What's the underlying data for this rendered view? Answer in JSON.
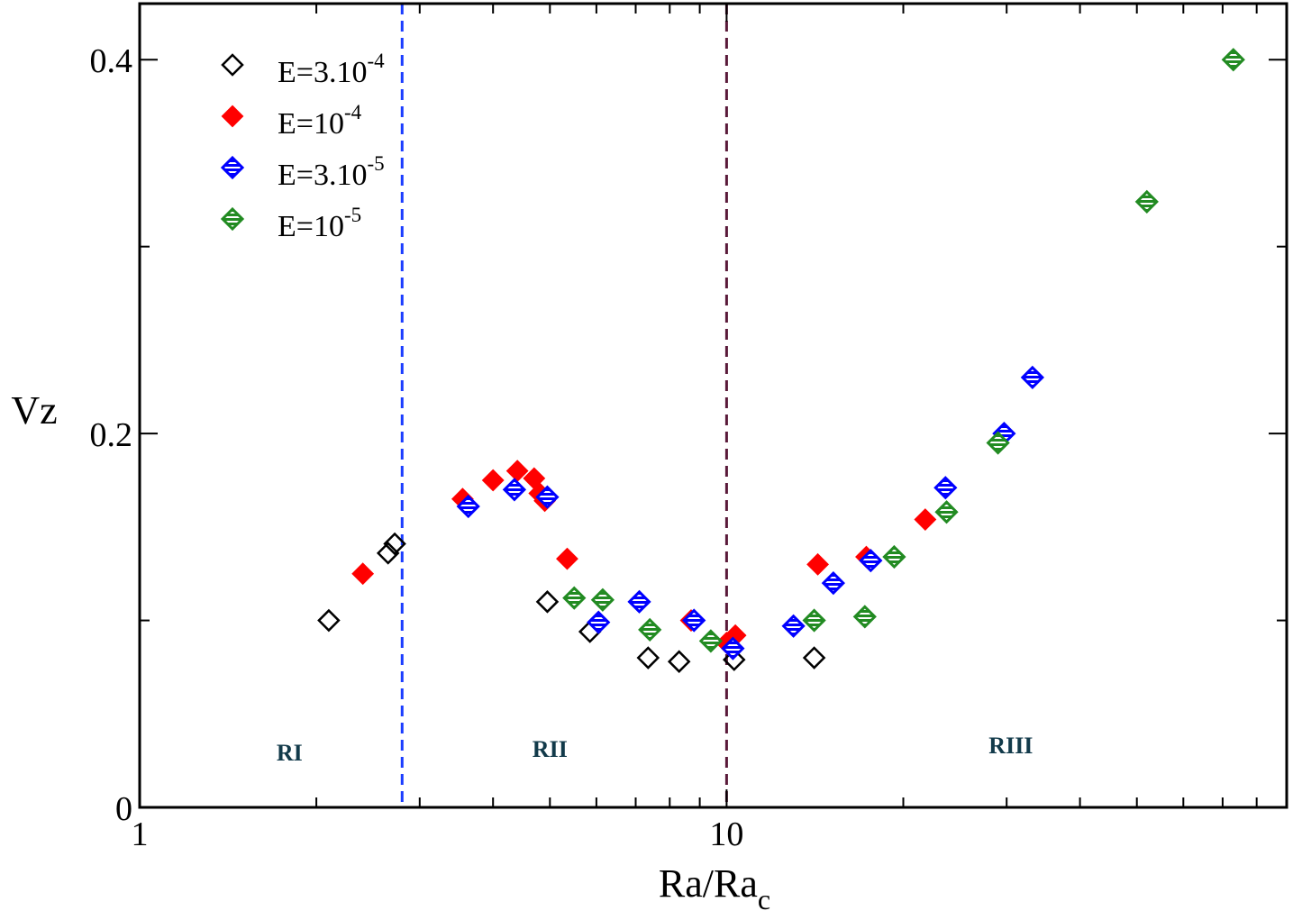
{
  "chart_data": {
    "type": "scatter",
    "x_scale": "log",
    "xlim": [
      1,
      90
    ],
    "ylim": [
      0,
      0.43
    ],
    "xlabel": {
      "main": "Ra/Ra",
      "sub": "c"
    },
    "ylabel": "Vz",
    "x_ticks": [
      {
        "value": 1,
        "label": "1"
      },
      {
        "value": 10,
        "label": "10"
      }
    ],
    "y_ticks": [
      {
        "value": 0,
        "label": "0"
      },
      {
        "value": 0.2,
        "label": "0.2"
      },
      {
        "value": 0.4,
        "label": "0.4"
      }
    ],
    "y_minor_ticks": [
      0.1,
      0.3
    ],
    "region_boundaries": [
      {
        "x": 2.8,
        "color": "#1a3cff"
      },
      {
        "x": 10.0,
        "color": "#5a1a3a"
      }
    ],
    "regions": [
      {
        "label": "RI",
        "x": 1.8,
        "y": 0.025
      },
      {
        "label": "RII",
        "x": 5.0,
        "y": 0.027
      },
      {
        "label": "RIII",
        "x": 30.5,
        "y": 0.029
      }
    ],
    "legend": {
      "position": "top-left"
    },
    "series": [
      {
        "name": "E=3.10^-4",
        "label_base": "E=3.10",
        "label_exp": "-4",
        "marker": "diamond-open",
        "color": "#000000",
        "points": [
          [
            2.1,
            0.1
          ],
          [
            2.65,
            0.136
          ],
          [
            2.72,
            0.141
          ],
          [
            4.95,
            0.11
          ],
          [
            5.85,
            0.094
          ],
          [
            7.35,
            0.08
          ],
          [
            8.3,
            0.078
          ],
          [
            10.3,
            0.079
          ],
          [
            14.1,
            0.08
          ]
        ]
      },
      {
        "name": "E=10^-4",
        "label_base": "E=10",
        "label_exp": "-4",
        "marker": "diamond-filled",
        "color": "#ff0000",
        "points": [
          [
            2.4,
            0.125
          ],
          [
            3.55,
            0.165
          ],
          [
            4.0,
            0.175
          ],
          [
            4.4,
            0.18
          ],
          [
            4.7,
            0.176
          ],
          [
            4.8,
            0.168
          ],
          [
            4.9,
            0.164
          ],
          [
            5.35,
            0.133
          ],
          [
            8.7,
            0.1
          ],
          [
            10.0,
            0.088
          ],
          [
            10.35,
            0.092
          ],
          [
            14.3,
            0.13
          ],
          [
            17.3,
            0.134
          ],
          [
            21.8,
            0.154
          ]
        ]
      },
      {
        "name": "E=3.10^-5",
        "label_base": "E=3.10",
        "label_exp": "-5",
        "marker": "diamond-hatched",
        "color": "#0000ff",
        "points": [
          [
            3.63,
            0.161
          ],
          [
            4.35,
            0.17
          ],
          [
            4.95,
            0.166
          ],
          [
            6.05,
            0.099
          ],
          [
            7.1,
            0.11
          ],
          [
            8.8,
            0.1
          ],
          [
            10.25,
            0.085
          ],
          [
            13.0,
            0.097
          ],
          [
            15.2,
            0.12
          ],
          [
            17.6,
            0.132
          ],
          [
            23.6,
            0.171
          ],
          [
            29.7,
            0.2
          ],
          [
            33.2,
            0.23
          ]
        ]
      },
      {
        "name": "E=10^-5",
        "label_base": "E=10",
        "label_exp": "-5",
        "marker": "diamond-hatched",
        "color": "#228b22",
        "points": [
          [
            5.5,
            0.112
          ],
          [
            6.15,
            0.111
          ],
          [
            7.4,
            0.095
          ],
          [
            9.4,
            0.089
          ],
          [
            14.1,
            0.1
          ],
          [
            17.2,
            0.102
          ],
          [
            19.3,
            0.134
          ],
          [
            23.7,
            0.158
          ],
          [
            29.0,
            0.195
          ],
          [
            52.0,
            0.324
          ],
          [
            73.0,
            0.4
          ]
        ]
      }
    ]
  }
}
